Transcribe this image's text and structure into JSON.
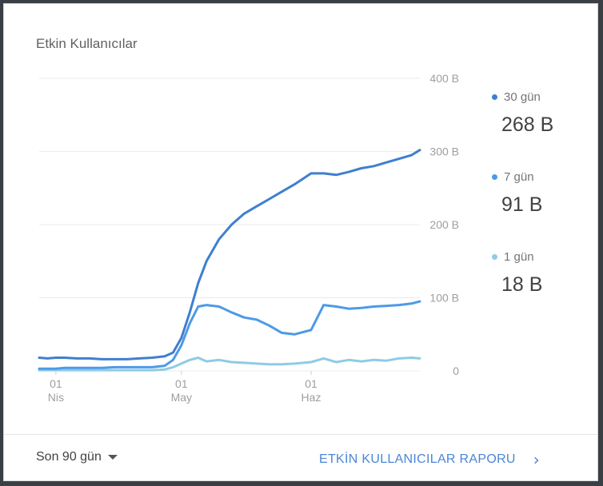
{
  "card": {
    "title": "Etkin Kullanıcılar"
  },
  "chart_data": {
    "type": "line",
    "x": [
      "03-28",
      "03-30",
      "04-01",
      "04-03",
      "04-06",
      "04-09",
      "04-12",
      "04-15",
      "04-18",
      "04-21",
      "04-24",
      "04-27",
      "04-29",
      "05-01",
      "05-03",
      "05-05",
      "05-07",
      "05-10",
      "05-13",
      "05-16",
      "05-19",
      "05-22",
      "05-25",
      "05-28",
      "06-01",
      "06-04",
      "06-07",
      "06-10",
      "06-13",
      "06-16",
      "06-19",
      "06-22",
      "06-25",
      "06-27"
    ],
    "series": [
      {
        "name": "30 gün",
        "color": "#3f7fcf",
        "values": [
          18,
          17,
          18,
          18,
          17,
          17,
          16,
          16,
          16,
          17,
          18,
          20,
          25,
          45,
          80,
          120,
          150,
          180,
          200,
          215,
          225,
          235,
          245,
          255,
          270,
          270,
          268,
          272,
          277,
          280,
          285,
          290,
          295,
          302
        ]
      },
      {
        "name": "7 gün",
        "color": "#4d9ae6",
        "values": [
          3,
          3,
          3,
          4,
          4,
          4,
          4,
          5,
          5,
          5,
          5,
          7,
          15,
          35,
          65,
          88,
          90,
          88,
          80,
          73,
          70,
          62,
          52,
          50,
          56,
          90,
          88,
          85,
          86,
          88,
          89,
          90,
          92,
          95
        ]
      },
      {
        "name": "1 gün",
        "color": "#8fcbe6",
        "values": [
          1,
          1,
          1,
          1,
          1,
          1,
          1,
          1,
          1,
          1,
          1,
          2,
          5,
          10,
          15,
          18,
          13,
          15,
          12,
          11,
          10,
          9,
          9,
          10,
          12,
          17,
          12,
          15,
          13,
          15,
          14,
          17,
          18,
          17
        ]
      }
    ],
    "x_ticks": [
      {
        "x": "04-01",
        "day": "01",
        "month": "Nis"
      },
      {
        "x": "05-01",
        "day": "01",
        "month": "May"
      },
      {
        "x": "06-01",
        "day": "01",
        "month": "Haz"
      }
    ],
    "y_ticks": [
      {
        "value": 400,
        "label": "400 B"
      },
      {
        "value": 300,
        "label": "300 B"
      },
      {
        "value": 200,
        "label": "200 B"
      },
      {
        "value": 100,
        "label": "100 B"
      },
      {
        "value": 0,
        "label": "0"
      }
    ],
    "ylim": [
      0,
      400
    ],
    "grid": true,
    "legend": "right",
    "legend_entries": [
      {
        "name": "30 gün",
        "value": "268 B",
        "color": "#3f7fcf"
      },
      {
        "name": "7 gün",
        "value": "91 B",
        "color": "#4d9ae6"
      },
      {
        "name": "1 gün",
        "value": "18 B",
        "color": "#8fcbe6"
      }
    ]
  },
  "footer": {
    "range_label": "Son 90 gün",
    "report_link": "ETKİN KULLANICILAR RAPORU",
    "chevron": "›"
  }
}
